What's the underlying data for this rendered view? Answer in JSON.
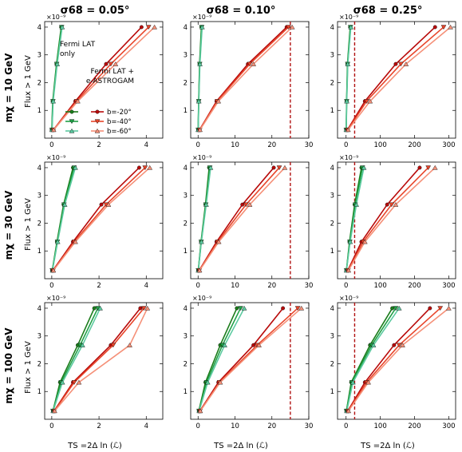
{
  "figure": {
    "column_titles": [
      "σ68 = 0.05°",
      "σ68 = 0.10°",
      "σ68 = 0.25°"
    ],
    "row_titles": [
      "mχ = 10 GeV",
      "mχ = 30 GeV",
      "mχ = 100 GeV"
    ],
    "ylabel": "Flux > 1 GeV",
    "xlabel": "TS =2Δ ln (ℒ)",
    "yscale_label": "×10⁻⁹",
    "legend_entries": [
      "b=-20°",
      "b=-40°",
      "b=-60°"
    ],
    "annotation_fermi": [
      "Fermi LAT",
      "only"
    ],
    "annotation_combined": [
      "Fermi LAT +",
      "e-ASTROGAM"
    ],
    "colors": {
      "fermi": [
        "#1b7c1b",
        "#20a046",
        "#5ccaa0"
      ],
      "combined": [
        "#b80a0a",
        "#e8452a",
        "#f59078"
      ],
      "threshold_line": "#b01010"
    }
  },
  "chart_data": [
    {
      "type": "line",
      "panel": "10 GeV / 0.05°",
      "y": [
        0.3,
        1.33,
        2.67,
        4.0
      ],
      "xlim": [
        -0.3,
        4.7
      ],
      "ylim": [
        0,
        4.2
      ],
      "xticks": [
        0,
        2,
        4
      ],
      "yticks": [
        1,
        2,
        3,
        4
      ],
      "threshold": null,
      "series": [
        {
          "name": "b=-20°",
          "group": "fermi",
          "x": [
            0.0,
            0.04,
            0.2,
            0.4
          ]
        },
        {
          "name": "b=-40°",
          "group": "fermi",
          "x": [
            0.01,
            0.05,
            0.21,
            0.42
          ]
        },
        {
          "name": "b=-60°",
          "group": "fermi",
          "x": [
            0.01,
            0.06,
            0.23,
            0.44
          ]
        },
        {
          "name": "b=-20°",
          "group": "combined",
          "x": [
            0.07,
            1.0,
            2.3,
            3.8
          ]
        },
        {
          "name": "b=-40°",
          "group": "combined",
          "x": [
            0.07,
            1.05,
            2.5,
            4.1
          ]
        },
        {
          "name": "b=-60°",
          "group": "combined",
          "x": [
            0.08,
            1.1,
            2.7,
            4.35
          ]
        }
      ]
    },
    {
      "type": "line",
      "panel": "10 GeV / 0.10°",
      "y": [
        0.3,
        1.33,
        2.67,
        4.0
      ],
      "xlim": [
        -2,
        30
      ],
      "ylim": [
        0,
        4.2
      ],
      "xticks": [
        0,
        10,
        20,
        30
      ],
      "yticks": [
        1,
        2,
        3,
        4
      ],
      "threshold": 25,
      "series": [
        {
          "name": "b=-20°",
          "group": "fermi",
          "x": [
            0.02,
            0.15,
            0.4,
            0.9
          ]
        },
        {
          "name": "b=-40°",
          "group": "fermi",
          "x": [
            0.03,
            0.18,
            0.45,
            1.0
          ]
        },
        {
          "name": "b=-60°",
          "group": "fermi",
          "x": [
            0.04,
            0.2,
            0.5,
            1.1
          ]
        },
        {
          "name": "b=-20°",
          "group": "combined",
          "x": [
            0.4,
            5.0,
            13.5,
            24.0
          ]
        },
        {
          "name": "b=-40°",
          "group": "combined",
          "x": [
            0.45,
            5.2,
            14.0,
            24.5
          ]
        },
        {
          "name": "b=-60°",
          "group": "combined",
          "x": [
            0.5,
            5.5,
            15.0,
            25.5
          ]
        }
      ]
    },
    {
      "type": "line",
      "panel": "10 GeV / 0.25°",
      "y": [
        0.3,
        1.33,
        2.67,
        4.0
      ],
      "xlim": [
        -25,
        320
      ],
      "ylim": [
        0,
        4.2
      ],
      "xticks": [
        0,
        100,
        200,
        300
      ],
      "yticks": [
        1,
        2,
        3,
        4
      ],
      "threshold": 25,
      "series": [
        {
          "name": "b=-20°",
          "group": "fermi",
          "x": [
            0.3,
            1.5,
            4.0,
            12.0
          ]
        },
        {
          "name": "b=-40°",
          "group": "fermi",
          "x": [
            0.4,
            1.8,
            4.5,
            13.0
          ]
        },
        {
          "name": "b=-60°",
          "group": "fermi",
          "x": [
            0.5,
            2.0,
            5.0,
            14.0
          ]
        },
        {
          "name": "b=-20°",
          "group": "combined",
          "x": [
            4,
            55,
            145,
            260
          ]
        },
        {
          "name": "b=-40°",
          "group": "combined",
          "x": [
            5,
            60,
            160,
            285
          ]
        },
        {
          "name": "b=-60°",
          "group": "combined",
          "x": [
            6,
            70,
            175,
            305
          ]
        }
      ]
    },
    {
      "type": "line",
      "panel": "30 GeV / 0.05°",
      "y": [
        0.3,
        1.33,
        2.67,
        4.0
      ],
      "xlim": [
        -0.3,
        4.7
      ],
      "ylim": [
        0,
        4.2
      ],
      "xticks": [
        0,
        2,
        4
      ],
      "yticks": [
        1,
        2,
        3,
        4
      ],
      "threshold": null,
      "series": [
        {
          "name": "b=-20°",
          "group": "fermi",
          "x": [
            0.02,
            0.22,
            0.5,
            0.9
          ]
        },
        {
          "name": "b=-40°",
          "group": "fermi",
          "x": [
            0.02,
            0.24,
            0.52,
            0.95
          ]
        },
        {
          "name": "b=-60°",
          "group": "fermi",
          "x": [
            0.03,
            0.25,
            0.55,
            1.0
          ]
        },
        {
          "name": "b=-20°",
          "group": "combined",
          "x": [
            0.05,
            0.9,
            2.1,
            3.7
          ]
        },
        {
          "name": "b=-40°",
          "group": "combined",
          "x": [
            0.06,
            0.95,
            2.3,
            3.95
          ]
        },
        {
          "name": "b=-60°",
          "group": "combined",
          "x": [
            0.07,
            1.0,
            2.4,
            4.15
          ]
        }
      ]
    },
    {
      "type": "line",
      "panel": "30 GeV / 0.10°",
      "y": [
        0.3,
        1.33,
        2.67,
        4.0
      ],
      "xlim": [
        -2,
        30
      ],
      "ylim": [
        0,
        4.2
      ],
      "xticks": [
        0,
        10,
        20,
        30
      ],
      "yticks": [
        1,
        2,
        3,
        4
      ],
      "threshold": 25,
      "series": [
        {
          "name": "b=-20°",
          "group": "fermi",
          "x": [
            0.05,
            0.8,
            2.0,
            3.0
          ]
        },
        {
          "name": "b=-40°",
          "group": "fermi",
          "x": [
            0.06,
            0.85,
            2.1,
            3.2
          ]
        },
        {
          "name": "b=-60°",
          "group": "fermi",
          "x": [
            0.07,
            0.9,
            2.2,
            3.4
          ]
        },
        {
          "name": "b=-20°",
          "group": "combined",
          "x": [
            0.3,
            5.0,
            12.0,
            20.5
          ]
        },
        {
          "name": "b=-40°",
          "group": "combined",
          "x": [
            0.35,
            5.3,
            13.0,
            22.0
          ]
        },
        {
          "name": "b=-60°",
          "group": "combined",
          "x": [
            0.4,
            5.6,
            14.0,
            23.5
          ]
        }
      ]
    },
    {
      "type": "line",
      "panel": "30 GeV / 0.25°",
      "y": [
        0.3,
        1.33,
        2.67,
        4.0
      ],
      "xlim": [
        -25,
        320
      ],
      "ylim": [
        0,
        4.2
      ],
      "xticks": [
        0,
        100,
        200,
        300
      ],
      "yticks": [
        1,
        2,
        3,
        4
      ],
      "threshold": 25,
      "series": [
        {
          "name": "b=-20°",
          "group": "fermi",
          "x": [
            1,
            10,
            25,
            45
          ]
        },
        {
          "name": "b=-40°",
          "group": "fermi",
          "x": [
            1,
            11,
            27,
            48
          ]
        },
        {
          "name": "b=-60°",
          "group": "fermi",
          "x": [
            1,
            12,
            30,
            52
          ]
        },
        {
          "name": "b=-20°",
          "group": "combined",
          "x": [
            5,
            45,
            120,
            215
          ]
        },
        {
          "name": "b=-40°",
          "group": "combined",
          "x": [
            6,
            50,
            133,
            240
          ]
        },
        {
          "name": "b=-60°",
          "group": "combined",
          "x": [
            7,
            55,
            145,
            260
          ]
        }
      ]
    },
    {
      "type": "line",
      "panel": "100 GeV / 0.05°",
      "y": [
        0.3,
        1.33,
        2.67,
        4.0
      ],
      "xlim": [
        -0.3,
        4.7
      ],
      "ylim": [
        0,
        4.2
      ],
      "xticks": [
        0,
        2,
        4
      ],
      "yticks": [
        1,
        2,
        3,
        4
      ],
      "threshold": null,
      "series": [
        {
          "name": "b=-20°",
          "group": "fermi",
          "x": [
            0.05,
            0.35,
            1.1,
            1.8
          ]
        },
        {
          "name": "b=-40°",
          "group": "fermi",
          "x": [
            0.05,
            0.4,
            1.2,
            1.95
          ]
        },
        {
          "name": "b=-60°",
          "group": "fermi",
          "x": [
            0.06,
            0.45,
            1.3,
            2.05
          ]
        },
        {
          "name": "b=-20°",
          "group": "combined",
          "x": [
            0.1,
            0.9,
            2.5,
            3.75
          ]
        },
        {
          "name": "b=-40°",
          "group": "combined",
          "x": [
            0.11,
            0.95,
            2.6,
            3.9
          ]
        },
        {
          "name": "b=-60°",
          "group": "combined",
          "x": [
            0.12,
            1.15,
            3.3,
            4.05
          ]
        }
      ]
    },
    {
      "type": "line",
      "panel": "100 GeV / 0.10°",
      "y": [
        0.3,
        1.33,
        2.67,
        4.0
      ],
      "xlim": [
        -2,
        30
      ],
      "ylim": [
        0,
        4.2
      ],
      "xticks": [
        0,
        10,
        20,
        30
      ],
      "yticks": [
        1,
        2,
        3,
        4
      ],
      "threshold": 25,
      "series": [
        {
          "name": "b=-20°",
          "group": "fermi",
          "x": [
            0.2,
            2.0,
            6.0,
            10.5
          ]
        },
        {
          "name": "b=-40°",
          "group": "fermi",
          "x": [
            0.25,
            2.3,
            6.6,
            11.5
          ]
        },
        {
          "name": "b=-60°",
          "group": "fermi",
          "x": [
            0.3,
            2.6,
            7.2,
            12.5
          ]
        },
        {
          "name": "b=-20°",
          "group": "combined",
          "x": [
            0.5,
            5.5,
            15.0,
            23.0
          ]
        },
        {
          "name": "b=-40°",
          "group": "combined",
          "x": [
            0.55,
            5.8,
            16.0,
            27.0
          ]
        },
        {
          "name": "b=-60°",
          "group": "combined",
          "x": [
            0.6,
            6.0,
            16.5,
            28.0
          ]
        }
      ]
    },
    {
      "type": "line",
      "panel": "100 GeV / 0.25°",
      "y": [
        0.3,
        1.33,
        2.67,
        4.0
      ],
      "xlim": [
        -25,
        320
      ],
      "ylim": [
        0,
        4.2
      ],
      "xticks": [
        0,
        100,
        200,
        300
      ],
      "yticks": [
        1,
        2,
        3,
        4
      ],
      "threshold": 25,
      "series": [
        {
          "name": "b=-20°",
          "group": "fermi",
          "x": [
            1,
            15,
            70,
            135
          ]
        },
        {
          "name": "b=-40°",
          "group": "fermi",
          "x": [
            1,
            17,
            75,
            145
          ]
        },
        {
          "name": "b=-60°",
          "group": "fermi",
          "x": [
            2,
            20,
            80,
            155
          ]
        },
        {
          "name": "b=-20°",
          "group": "combined",
          "x": [
            5,
            55,
            140,
            245
          ]
        },
        {
          "name": "b=-40°",
          "group": "combined",
          "x": [
            6,
            60,
            155,
            275
          ]
        },
        {
          "name": "b=-60°",
          "group": "combined",
          "x": [
            7,
            65,
            165,
            300
          ]
        }
      ]
    }
  ]
}
